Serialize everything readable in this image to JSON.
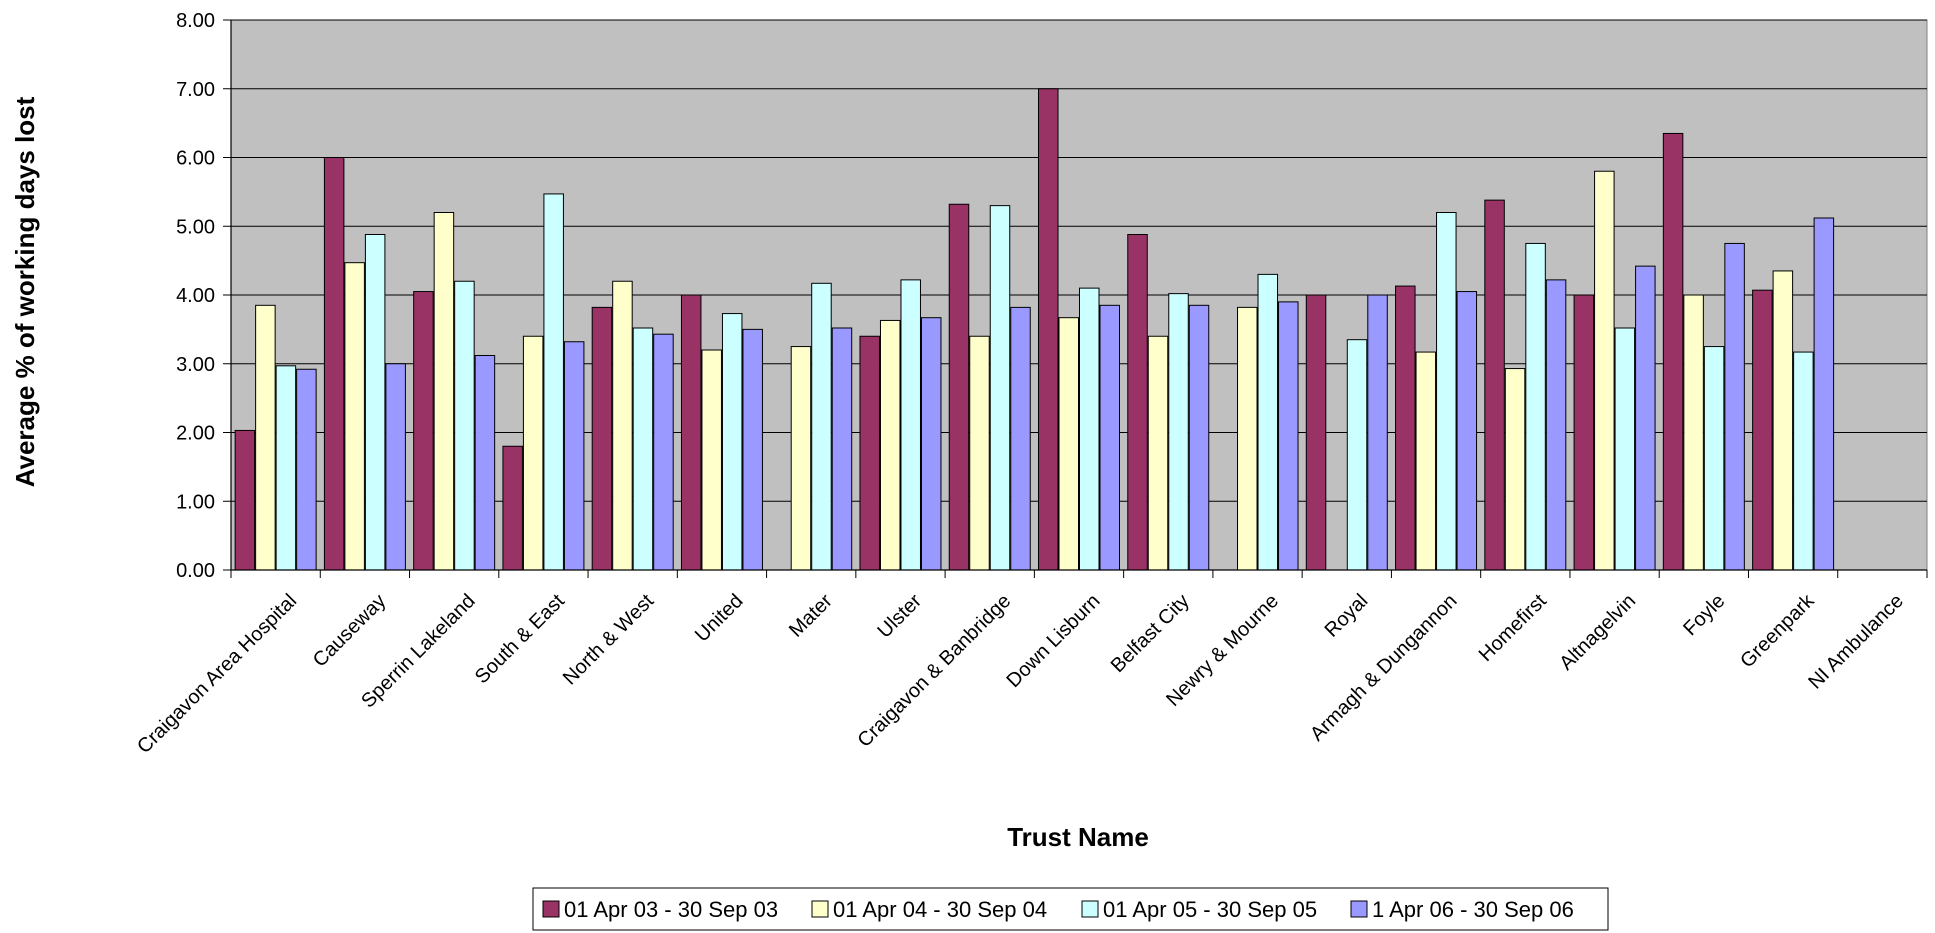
{
  "chart_data": {
    "type": "bar",
    "xlabel": "Trust Name",
    "ylabel": "Average % of working days lost",
    "ylim": [
      0,
      8
    ],
    "yticks": [
      "0.00",
      "1.00",
      "2.00",
      "3.00",
      "4.00",
      "5.00",
      "6.00",
      "7.00",
      "8.00"
    ],
    "grid": true,
    "legend_position": "bottom",
    "plot_background": "#C0C0C0",
    "categories": [
      "Craigavon Area Hospital",
      "Causeway",
      "Sperrin Lakeland",
      "South & East",
      "North & West",
      "United",
      "Mater",
      "Ulster",
      "Craigavon & Banbridge",
      "Down Lisburn",
      "Belfast City",
      "Newry & Mourne",
      "Royal",
      "Armagh & Dungannon",
      "Homefirst",
      "Altnagelvin",
      "Foyle",
      "Greenpark",
      "NI Ambulance"
    ],
    "series": [
      {
        "name": "01 Apr 03 - 30 Sep 03",
        "color": "#993366",
        "values": [
          2.03,
          6.0,
          4.05,
          1.8,
          3.82,
          4.0,
          null,
          3.4,
          5.32,
          7.0,
          4.88,
          null,
          4.0,
          4.13,
          5.38,
          4.0,
          6.35,
          4.07,
          null
        ]
      },
      {
        "name": "01 Apr 04 - 30 Sep 04",
        "color": "#FFFFCC",
        "values": [
          3.85,
          4.47,
          5.2,
          3.4,
          4.2,
          3.2,
          3.25,
          3.63,
          3.4,
          3.67,
          3.4,
          3.82,
          null,
          3.17,
          2.93,
          5.8,
          4.0,
          4.35,
          null
        ]
      },
      {
        "name": "01 Apr 05 - 30 Sep 05",
        "color": "#CCFFFF",
        "values": [
          2.97,
          4.88,
          4.2,
          5.47,
          3.52,
          3.73,
          4.17,
          4.22,
          5.3,
          4.1,
          4.02,
          4.3,
          3.35,
          5.2,
          4.75,
          3.52,
          3.25,
          3.17,
          null
        ]
      },
      {
        "name": "1 Apr 06 - 30 Sep 06",
        "color": "#9999FF",
        "values": [
          2.92,
          3.0,
          3.12,
          3.32,
          3.43,
          3.5,
          3.52,
          3.67,
          3.82,
          3.85,
          3.85,
          3.9,
          4.0,
          4.05,
          4.22,
          4.42,
          4.75,
          5.12,
          null
        ]
      }
    ]
  }
}
